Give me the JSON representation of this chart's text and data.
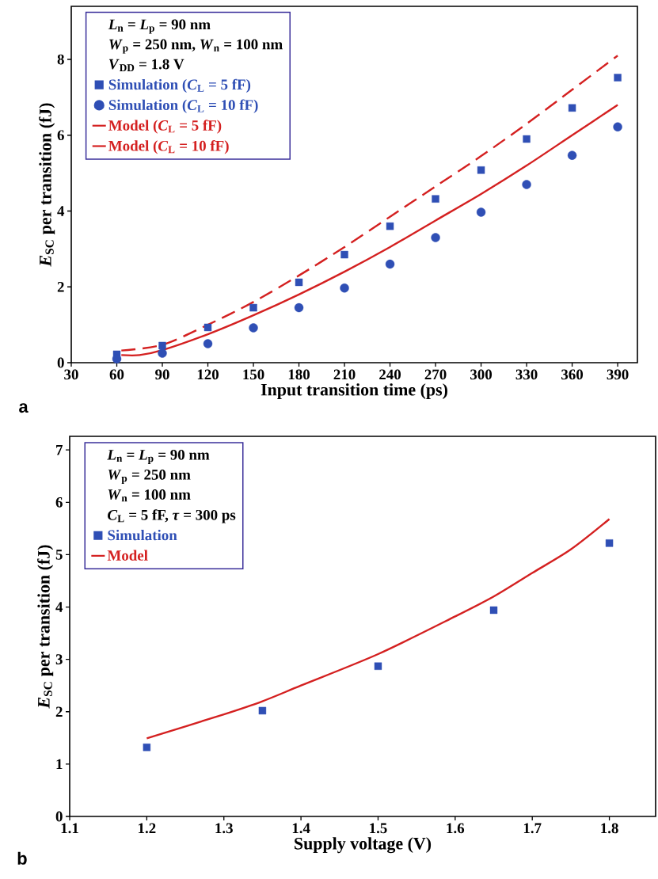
{
  "chart_data": [
    {
      "type": "line",
      "xlabel": "Input transition time (ps)",
      "ylabel": "*E*$_{SC}$ per transition (fJ)",
      "xlim": [
        30,
        403
      ],
      "ylim": [
        0,
        9.4
      ],
      "xticks": [
        30,
        60,
        90,
        120,
        150,
        180,
        210,
        240,
        270,
        300,
        330,
        360,
        390
      ],
      "yticks": [
        0,
        2,
        4,
        6,
        8
      ],
      "legend": "top left",
      "grid": false,
      "annotations": [
        "*L*$_{n}$ = *L*$_{p}$ = 90 nm",
        "*W*$_{p}$ = 250 nm, *W*$_{n}$ = 100 nm",
        "*V*$_{DD}$ = 1.8 V",
        "a"
      ],
      "series": [
        {
          "name": "Simulation (*C*$_{L}$ = 5 fF)",
          "type": "scatter",
          "marker": "square",
          "color": "#2f4fb5",
          "x": [
            60,
            90,
            120,
            150,
            180,
            210,
            240,
            270,
            300,
            330,
            360,
            390
          ],
          "values": [
            0.22,
            0.45,
            0.93,
            1.45,
            2.12,
            2.85,
            3.6,
            4.32,
            5.08,
            5.9,
            6.72,
            7.52
          ]
        },
        {
          "name": "Simulation (*C*$_{L}$ = 10 fF)",
          "type": "scatter",
          "marker": "circle",
          "color": "#2f4fb5",
          "x": [
            60,
            90,
            120,
            150,
            180,
            210,
            240,
            270,
            300,
            330,
            360,
            390
          ],
          "values": [
            0.1,
            0.25,
            0.5,
            0.92,
            1.45,
            1.97,
            2.6,
            3.3,
            3.97,
            4.7,
            5.47,
            6.22
          ]
        },
        {
          "name": "Model (*C*$_{L}$ = 5 fF)",
          "type": "line",
          "line_style": "dashed",
          "color": "#d42020",
          "x": [
            63,
            90,
            120,
            150,
            180,
            210,
            240,
            270,
            300,
            330,
            360,
            390
          ],
          "values": [
            0.32,
            0.47,
            1.0,
            1.6,
            2.3,
            3.05,
            3.85,
            4.65,
            5.45,
            6.3,
            7.2,
            8.1
          ]
        },
        {
          "name": "Model (*C*$_{L}$ = 10 fF)",
          "type": "line",
          "line_style": "solid",
          "color": "#d42020",
          "x": [
            63,
            75,
            90,
            120,
            150,
            180,
            210,
            240,
            270,
            300,
            330,
            360,
            390
          ],
          "values": [
            0.2,
            0.2,
            0.33,
            0.75,
            1.25,
            1.8,
            2.4,
            3.05,
            3.75,
            4.45,
            5.2,
            6.0,
            6.8
          ]
        }
      ]
    },
    {
      "type": "line",
      "xlabel": "Supply voltage (V)",
      "ylabel": "*E*$_{SC}$ per transition (fJ)",
      "xlim": [
        1.1,
        1.86
      ],
      "ylim": [
        0,
        7.26
      ],
      "xticks": [
        1.1,
        1.2,
        1.3,
        1.4,
        1.5,
        1.6,
        1.7,
        1.8
      ],
      "yticks": [
        0,
        1,
        2,
        3,
        4,
        5,
        6,
        7
      ],
      "legend": "top left",
      "grid": false,
      "annotations": [
        "*L*$_{n}$ = *L*$_{p}$ = 90 nm",
        "*W*$_{p}$ = 250 nm",
        "*W*$_{n}$ = 100 nm",
        "*C*$_{L}$ = 5 fF, *τ* = 300 ps",
        "b"
      ],
      "series": [
        {
          "name": "Simulation",
          "type": "scatter",
          "marker": "square",
          "color": "#2f4fb5",
          "x": [
            1.2,
            1.35,
            1.5,
            1.65,
            1.8
          ],
          "values": [
            1.32,
            2.02,
            2.87,
            3.94,
            5.22
          ]
        },
        {
          "name": "Model",
          "type": "line",
          "line_style": "solid",
          "color": "#d42020",
          "x": [
            1.2,
            1.3,
            1.35,
            1.4,
            1.5,
            1.6,
            1.65,
            1.7,
            1.75,
            1.8
          ],
          "values": [
            1.49,
            1.95,
            2.2,
            2.5,
            3.1,
            3.82,
            4.2,
            4.65,
            5.1,
            5.68
          ]
        }
      ]
    }
  ]
}
